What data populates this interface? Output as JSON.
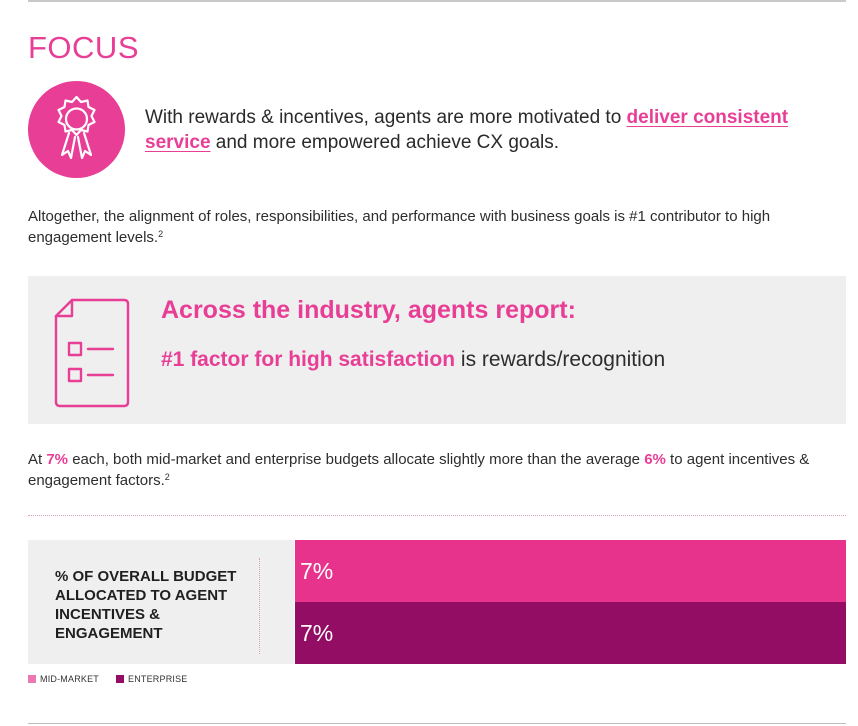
{
  "section": {
    "title": "FOCUS",
    "intro_before": "With rewards & incentives, agents are more motivated to ",
    "intro_highlight": "deliver consistent service",
    "intro_after": " and more empowered achieve CX goals."
  },
  "paragraph1": {
    "text": "Altogether, the alignment of roles, responsibilities, and performance with business goals is #1 contributor to high engagement levels.",
    "footnote": "2"
  },
  "callout": {
    "heading": "Across the industry, agents report:",
    "lead": "#1 factor for high satisfaction",
    "rest": " is rewards/recognition"
  },
  "paragraph2": {
    "t1": "At ",
    "b1": "7%",
    "t2": " each, both mid-market and enterprise budgets allocate slightly more than the average ",
    "b2": "6%",
    "t3": " to agent incentives & engagement factors.",
    "footnote": "2"
  },
  "colors": {
    "accent": "#e83e96",
    "mid_market": "#e8338d",
    "enterprise": "#930d65",
    "panel": "#efefef"
  },
  "chart_data": {
    "type": "bar",
    "orientation": "horizontal",
    "ylabel": "% OF OVERALL BUDGET ALLOCATED TO AGENT INCENTIVES & ENGAGEMENT",
    "xlim": [
      0,
      7
    ],
    "series": [
      {
        "name": "MID-MARKET",
        "value": 7,
        "label": "7%",
        "color": "#e8338d"
      },
      {
        "name": "ENTERPRISE",
        "value": 7,
        "label": "7%",
        "color": "#930d65"
      }
    ],
    "legend": "bottom-left"
  }
}
